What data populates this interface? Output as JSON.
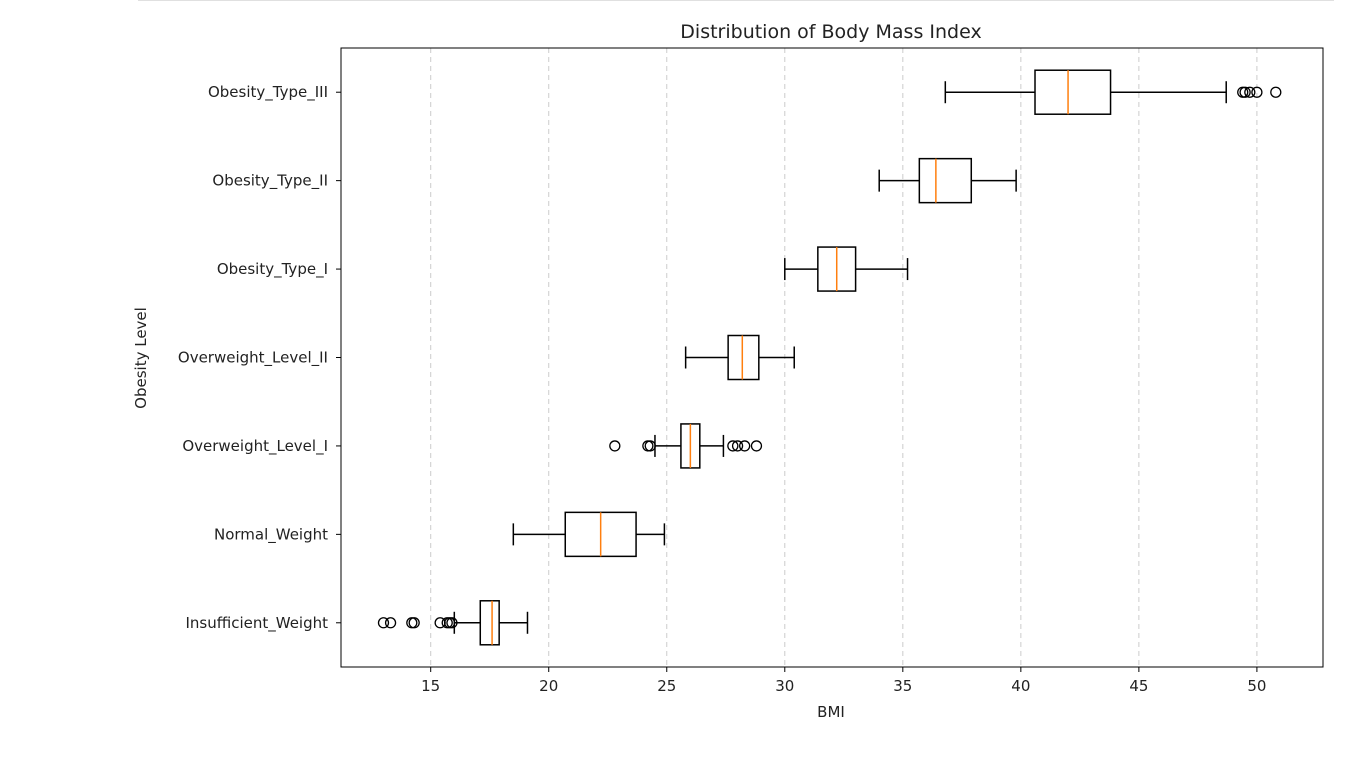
{
  "chart_data": {
    "type": "boxplot",
    "orientation": "horizontal",
    "title": "Distribution of Body Mass Index",
    "xlabel": "BMI",
    "ylabel": "Obesity Level",
    "xlim": [
      11.2,
      52.8
    ],
    "xticks": [
      15,
      20,
      25,
      30,
      35,
      40,
      45,
      50
    ],
    "grid": "x-dashed",
    "colors": {
      "box": "#000000",
      "median": "#ff7f0e",
      "grid": "#cccccc"
    },
    "categories": [
      "Insufficient_Weight",
      "Normal_Weight",
      "Overweight_Level_I",
      "Overweight_Level_II",
      "Obesity_Type_I",
      "Obesity_Type_II",
      "Obesity_Type_III"
    ],
    "boxes": [
      {
        "whisker_low": 16.0,
        "q1": 17.1,
        "median": 17.6,
        "q3": 17.9,
        "whisker_high": 19.1,
        "outliers": [
          13.0,
          13.3,
          14.2,
          14.3,
          15.4,
          15.7,
          15.8,
          15.9
        ]
      },
      {
        "whisker_low": 18.5,
        "q1": 20.7,
        "median": 22.2,
        "q3": 23.7,
        "whisker_high": 24.9,
        "outliers": []
      },
      {
        "whisker_low": 24.5,
        "q1": 25.6,
        "median": 26.0,
        "q3": 26.4,
        "whisker_high": 27.4,
        "outliers": [
          22.8,
          24.2,
          24.3,
          27.8,
          28.0,
          28.3,
          28.8
        ]
      },
      {
        "whisker_low": 25.8,
        "q1": 27.6,
        "median": 28.2,
        "q3": 28.9,
        "whisker_high": 30.4,
        "outliers": []
      },
      {
        "whisker_low": 30.0,
        "q1": 31.4,
        "median": 32.2,
        "q3": 33.0,
        "whisker_high": 35.2,
        "outliers": []
      },
      {
        "whisker_low": 34.0,
        "q1": 35.7,
        "median": 36.4,
        "q3": 37.9,
        "whisker_high": 39.8,
        "outliers": []
      },
      {
        "whisker_low": 36.8,
        "q1": 40.6,
        "median": 42.0,
        "q3": 43.8,
        "whisker_high": 48.7,
        "outliers": [
          49.4,
          49.5,
          49.7,
          50.0,
          50.8
        ]
      }
    ]
  }
}
